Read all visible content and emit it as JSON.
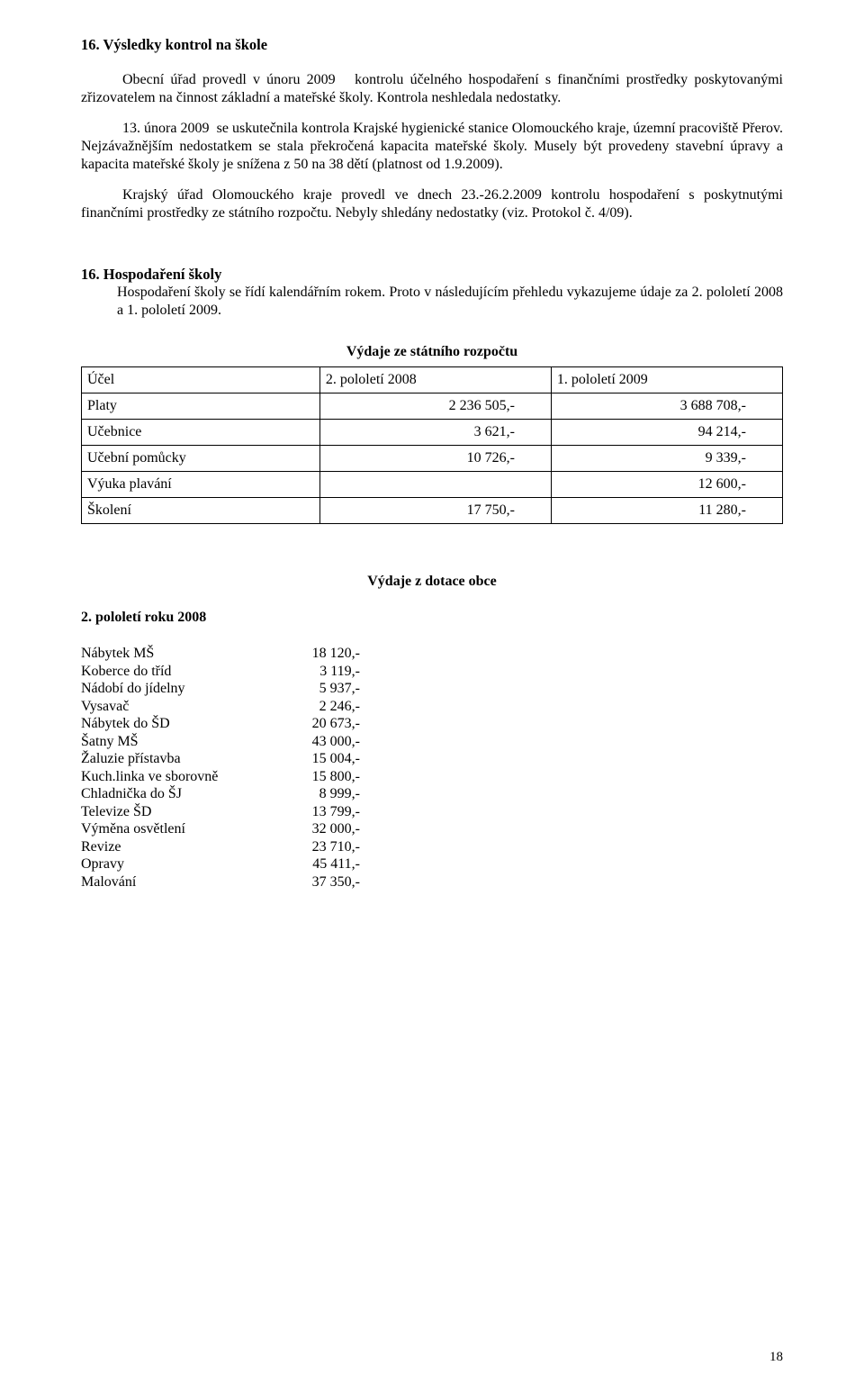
{
  "heading1": "16. Výsledky kontrol na škole",
  "para1": "Obecní úřad provedl v únoru 2009   kontrolu účelného hospodaření s finančními prostředky poskytovanými zřizovatelem na činnost základní a mateřské školy. Kontrola neshledala nedostatky.",
  "para2": "13. února 2009  se uskutečnila kontrola Krajské hygienické stanice Olomouckého kraje, územní pracoviště Přerov. Nejzávažnějším nedostatkem se stala překročená kapacita mateřské školy. Musely být provedeny stavební úpravy a kapacita mateřské školy je snížena z 50 na 38 dětí (platnost od 1.9.2009).",
  "para3": "Krajský úřad Olomouckého kraje provedl ve dnech 23.-26.2.2009 kontrolu hospodaření s poskytnutými finančními prostředky ze státního rozpočtu. Nebyly shledány nedostatky (viz. Protokol č. 4/09).",
  "heading2": "16. Hospodaření školy",
  "sub2": "Hospodaření školy se řídí kalendářním rokem. Proto v následujícím přehledu vykazujeme údaje za 2. pololetí 2008 a 1. pololetí 2009.",
  "table1": {
    "title": "Výdaje ze státního rozpočtu",
    "columns": [
      "Účel",
      "2. pololetí 2008",
      "1. pololetí 2009"
    ],
    "rows": [
      [
        "Platy",
        "2 236 505,-",
        "3 688 708,-"
      ],
      [
        "Učebnice",
        "3 621,-",
        "94 214,-"
      ],
      [
        "Učební pomůcky",
        "10 726,-",
        "9 339,-"
      ],
      [
        "Výuka plavání",
        "",
        "12 600,-"
      ],
      [
        "Školení",
        "17 750,-",
        "11 280,-"
      ]
    ]
  },
  "section2_title": "Výdaje z dotace obce",
  "section2_sub": "2. pololetí roku 2008",
  "kv": [
    [
      "Nábytek MŠ",
      "18 120,-"
    ],
    [
      "Koberce do tříd",
      "3 119,-"
    ],
    [
      "Nádobí do jídelny",
      "5 937,-"
    ],
    [
      "Vysavač",
      "2 246,-"
    ],
    [
      "Nábytek do ŠD",
      "20 673,-"
    ],
    [
      "Šatny MŠ",
      "43 000,-"
    ],
    [
      "Žaluzie přístavba",
      "15 004,-"
    ],
    [
      "Kuch.linka ve sborovně",
      "15 800,-"
    ],
    [
      "Chladnička do ŠJ",
      "8 999,-"
    ],
    [
      "Televize ŠD",
      "13 799,-"
    ],
    [
      "Výměna osvětlení",
      "32 000,-"
    ],
    [
      "Revize",
      "23 710,-"
    ],
    [
      "Opravy",
      "45 411,-"
    ],
    [
      "Malování",
      "37 350,-"
    ]
  ],
  "page_number": "18"
}
